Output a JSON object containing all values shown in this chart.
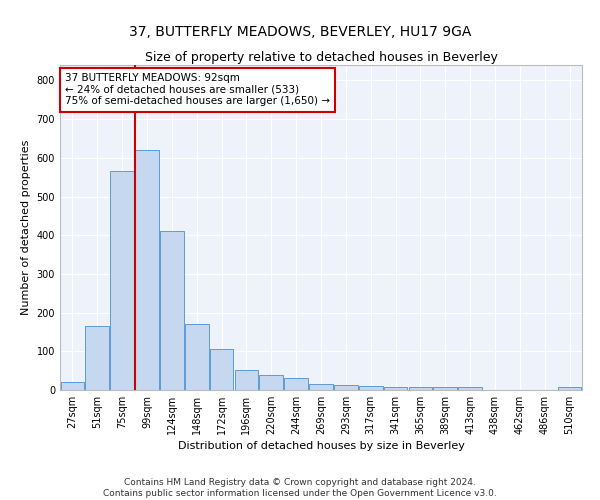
{
  "title": "37, BUTTERFLY MEADOWS, BEVERLEY, HU17 9GA",
  "subtitle": "Size of property relative to detached houses in Beverley",
  "xlabel": "Distribution of detached houses by size in Beverley",
  "ylabel": "Number of detached properties",
  "categories": [
    "27sqm",
    "51sqm",
    "75sqm",
    "99sqm",
    "124sqm",
    "148sqm",
    "172sqm",
    "196sqm",
    "220sqm",
    "244sqm",
    "269sqm",
    "293sqm",
    "317sqm",
    "341sqm",
    "365sqm",
    "389sqm",
    "413sqm",
    "438sqm",
    "462sqm",
    "486sqm",
    "510sqm"
  ],
  "bar_heights": [
    20,
    165,
    565,
    620,
    410,
    170,
    105,
    52,
    40,
    32,
    15,
    14,
    10,
    8,
    8,
    8,
    8,
    0,
    0,
    0,
    8
  ],
  "bar_color": "#c5d8f0",
  "bar_edge_color": "#5b9bd5",
  "vline_pos": 2.5,
  "vline_color": "#cc0000",
  "annotation_text": "37 BUTTERFLY MEADOWS: 92sqm\n← 24% of detached houses are smaller (533)\n75% of semi-detached houses are larger (1,650) →",
  "annotation_box_color": "#cc0000",
  "ylim": [
    0,
    840
  ],
  "yticks": [
    0,
    100,
    200,
    300,
    400,
    500,
    600,
    700,
    800
  ],
  "background_color": "#eef2fb",
  "grid_color": "#ffffff",
  "footer": "Contains HM Land Registry data © Crown copyright and database right 2024.\nContains public sector information licensed under the Open Government Licence v3.0.",
  "title_fontsize": 10,
  "subtitle_fontsize": 9,
  "axis_label_fontsize": 8,
  "tick_fontsize": 7,
  "annotation_fontsize": 7.5,
  "footer_fontsize": 6.5
}
